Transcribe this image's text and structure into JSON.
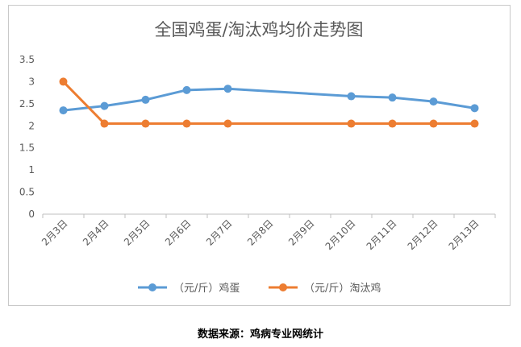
{
  "chart_data": {
    "type": "line",
    "title": "全国鸡蛋/淘汰鸡均价走势图",
    "categories": [
      "2月3日",
      "2月4日",
      "2月5日",
      "2月6日",
      "2月7日",
      "2月8日",
      "2月9日",
      "2月10日",
      "2月11日",
      "2月12日",
      "2月13日"
    ],
    "ylim": [
      0,
      3.5
    ],
    "yticks": [
      "0",
      "0.5",
      "1",
      "1.5",
      "2",
      "2.5",
      "3",
      "3.5"
    ],
    "grid": false,
    "legend_position": "bottom",
    "series": [
      {
        "name": "（元/斤）鸡蛋",
        "color": "#5b9bd5",
        "values": [
          2.35,
          2.45,
          2.59,
          2.81,
          2.84,
          null,
          null,
          2.67,
          2.64,
          2.55,
          2.4
        ]
      },
      {
        "name": "（元/斤）淘汰鸡",
        "color": "#ed7d31",
        "values": [
          3.0,
          2.05,
          2.05,
          2.05,
          2.05,
          null,
          null,
          2.05,
          2.05,
          2.05,
          2.05
        ]
      }
    ]
  },
  "source": "数据来源：鸡病专业网统计"
}
